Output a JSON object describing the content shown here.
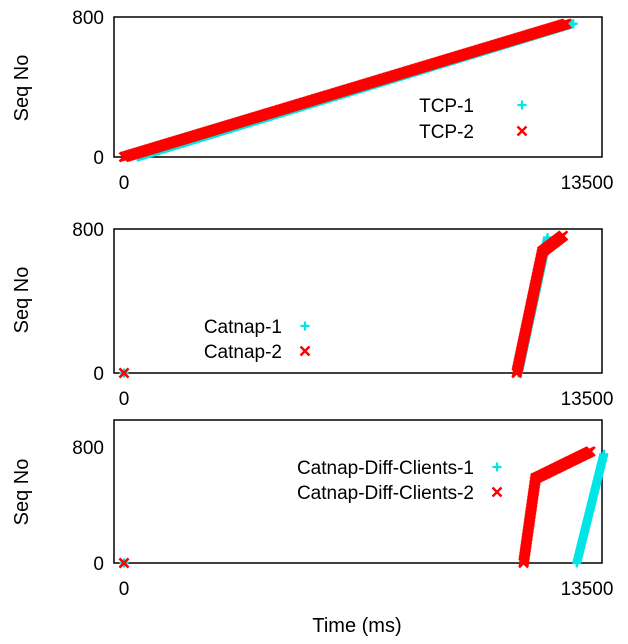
{
  "chart_data": [
    {
      "type": "scatter",
      "panel": "top",
      "ylabel": "Seq No",
      "xlim": [
        0,
        13500
      ],
      "ylim": [
        0,
        800
      ],
      "xticks": [
        "0",
        "13500"
      ],
      "yticks": [
        "0",
        "800"
      ],
      "legend": "center-right",
      "series": [
        {
          "name": "TCP-1",
          "marker": "+",
          "color": "#00e5e5",
          "segments": [
            {
              "x": [
                400,
                13100
              ],
              "y": [
                0,
                790
              ]
            }
          ]
        },
        {
          "name": "TCP-2",
          "marker": "x",
          "color": "#ff0000",
          "segments": [
            {
              "x": [
                0,
                12900
              ],
              "y": [
                0,
                790
              ]
            }
          ]
        }
      ]
    },
    {
      "type": "scatter",
      "panel": "middle",
      "ylabel": "Seq No",
      "xlim": [
        0,
        13500
      ],
      "ylim": [
        0,
        800
      ],
      "xticks": [
        "0",
        "13500"
      ],
      "yticks": [
        "0",
        "800"
      ],
      "legend": "center-left",
      "series": [
        {
          "name": "Catnap-1",
          "marker": "+",
          "color": "#00e5e5",
          "segments": [
            {
              "x": [
                0,
                0
              ],
              "y": [
                0,
                0
              ]
            },
            {
              "x": [
                11500,
                12350
              ],
              "y": [
                0,
                780
              ]
            }
          ]
        },
        {
          "name": "Catnap-2",
          "marker": "x",
          "color": "#ff0000",
          "segments": [
            {
              "x": [
                0,
                0
              ],
              "y": [
                0,
                0
              ]
            },
            {
              "x": [
                11450,
                12200
              ],
              "y": [
                0,
                700
              ]
            },
            {
              "x": [
                12200,
                12800
              ],
              "y": [
                700,
                790
              ]
            }
          ]
        }
      ]
    },
    {
      "type": "scatter",
      "panel": "bottom",
      "ylabel": "Seq No",
      "xlabel": "Time (ms)",
      "xlim": [
        0,
        13500
      ],
      "ylim": [
        0,
        800
      ],
      "xticks": [
        "0",
        "13500"
      ],
      "yticks": [
        "0",
        "800"
      ],
      "legend": "top-right",
      "series": [
        {
          "name": "Catnap-Diff-Clients-1",
          "marker": "+",
          "color": "#00e5e5",
          "segments": [
            {
              "x": [
                0,
                0
              ],
              "y": [
                0,
                0
              ]
            },
            {
              "x": [
                13200,
                14000
              ],
              "y": [
                0,
                780
              ]
            }
          ]
        },
        {
          "name": "Catnap-Diff-Clients-2",
          "marker": "x",
          "color": "#ff0000",
          "segments": [
            {
              "x": [
                0,
                0
              ],
              "y": [
                0,
                0
              ]
            },
            {
              "x": [
                11650,
                12000
              ],
              "y": [
                0,
                600
              ]
            },
            {
              "x": [
                12000,
                13600
              ],
              "y": [
                600,
                790
              ]
            }
          ]
        }
      ]
    }
  ]
}
